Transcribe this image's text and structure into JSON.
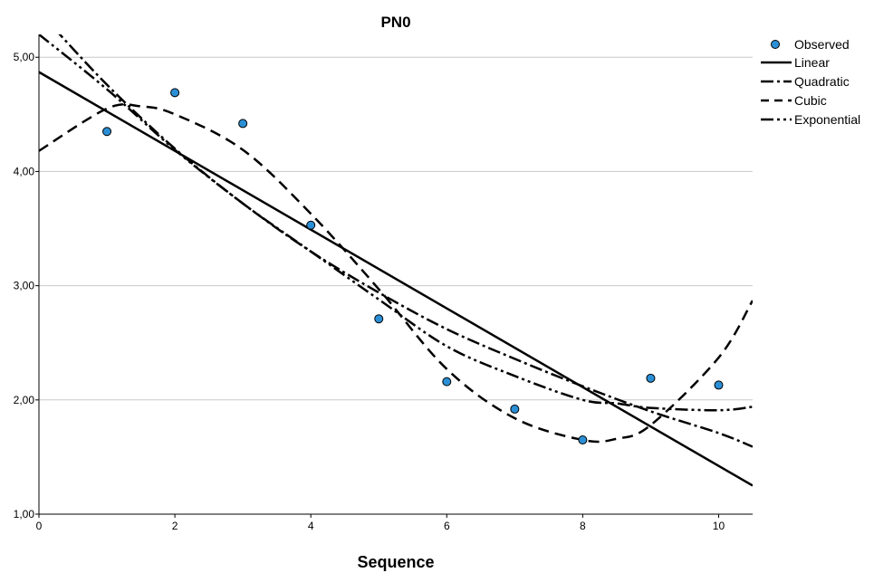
{
  "chart_data": {
    "type": "scatter",
    "title": "PN0",
    "xlabel": "Sequence",
    "ylabel": "",
    "xlim": [
      0,
      10.5
    ],
    "ylim": [
      1.0,
      5.2
    ],
    "x_ticks": [
      0,
      2,
      4,
      6,
      8,
      10
    ],
    "x_tick_labels": [
      "0",
      "2",
      "4",
      "6",
      "8",
      "10"
    ],
    "y_ticks": [
      1,
      2,
      3,
      4,
      5
    ],
    "y_tick_labels": [
      "1,00",
      "2,00",
      "3,00",
      "4,00",
      "5,00"
    ],
    "grid": "horizontal",
    "legend_position": "right",
    "observed": {
      "name": "Observed",
      "color": "#2b8fd6",
      "x": [
        1,
        2,
        3,
        4,
        5,
        6,
        7,
        8,
        9,
        10
      ],
      "y": [
        4.35,
        4.69,
        4.42,
        3.53,
        2.71,
        2.16,
        1.92,
        1.65,
        2.19,
        2.13
      ]
    },
    "fits": [
      {
        "name": "Linear",
        "style": "solid",
        "x": [
          0,
          10.5
        ],
        "y": [
          4.87,
          1.25
        ]
      },
      {
        "name": "Quadratic",
        "style": "dashdot",
        "x": [
          0,
          1,
          2,
          3,
          4,
          5,
          6,
          7,
          8,
          9,
          10,
          10.5
        ],
        "y": [
          5.4,
          4.76,
          4.2,
          3.72,
          3.3,
          2.94,
          2.62,
          2.36,
          2.12,
          1.9,
          1.71,
          1.59
        ]
      },
      {
        "name": "Cubic",
        "style": "dashed",
        "x": [
          0,
          1,
          1.5,
          2,
          3,
          4,
          5,
          6,
          7,
          8,
          8.5,
          9,
          10,
          10.5
        ],
        "y": [
          4.18,
          4.55,
          4.57,
          4.5,
          4.19,
          3.63,
          2.97,
          2.27,
          1.84,
          1.65,
          1.66,
          1.78,
          2.37,
          2.87
        ]
      },
      {
        "name": "Exponential",
        "style": "dashdotdot",
        "x": [
          0,
          1,
          2,
          3,
          4,
          5,
          6,
          7,
          8,
          8.5,
          9,
          10,
          10.5
        ],
        "y": [
          5.2,
          4.72,
          4.19,
          3.72,
          3.3,
          2.88,
          2.47,
          2.21,
          2.0,
          1.97,
          1.93,
          1.91,
          1.94
        ]
      }
    ]
  }
}
